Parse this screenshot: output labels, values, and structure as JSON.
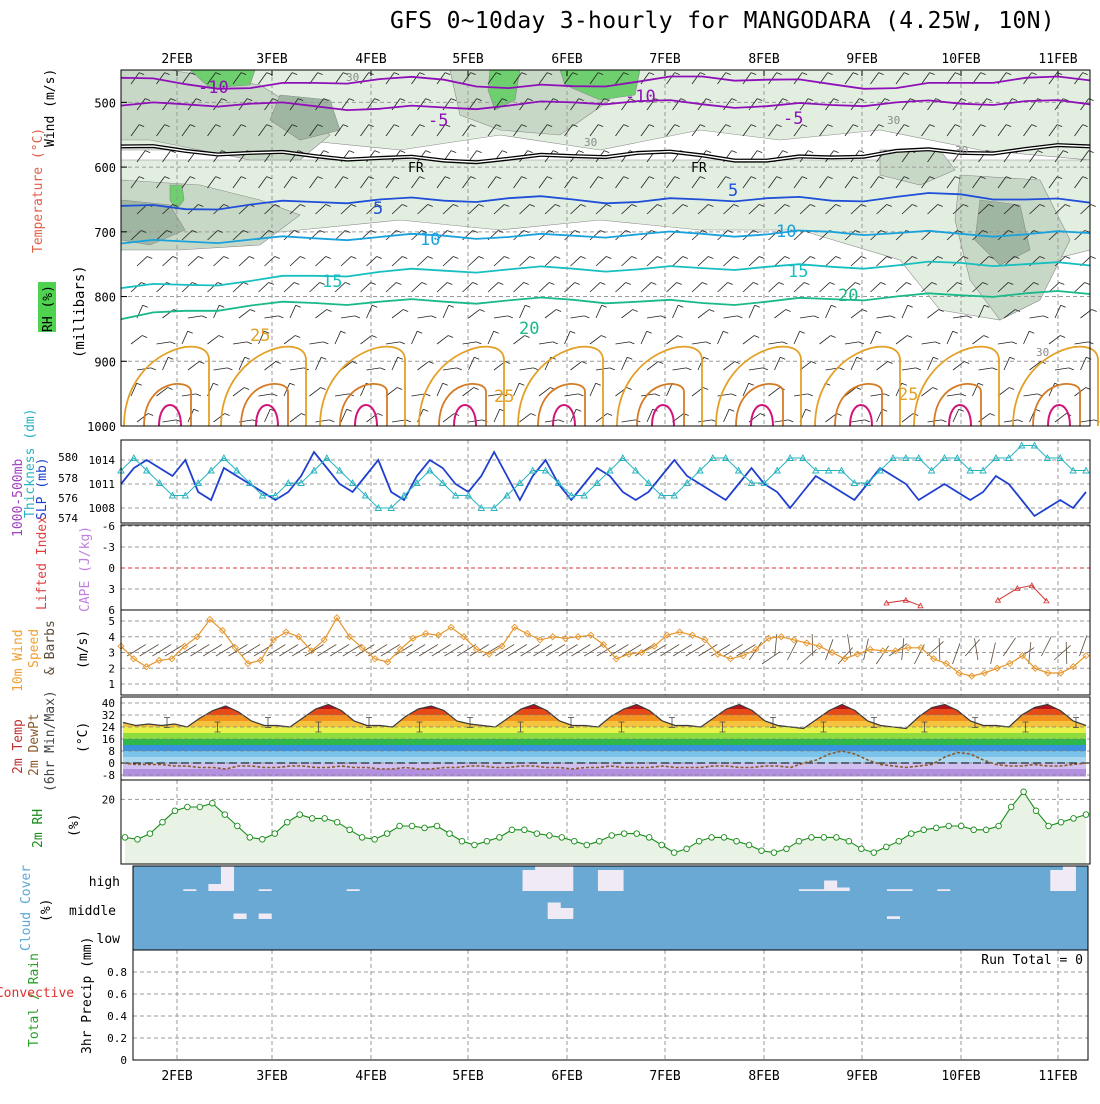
{
  "title": "GFS 0~10day 3-hourly for MANGODARA (4.25W, 10N)",
  "dates": [
    "2FEB",
    "3FEB",
    "4FEB",
    "5FEB",
    "6FEB",
    "7FEB",
    "8FEB",
    "9FEB",
    "10FEB",
    "11FEB"
  ],
  "colors": {
    "rh_light": "#e2efe0",
    "rh_mid": "#c8d8c7",
    "rh_dark": "#9fb7a2",
    "rh_green": "#6dcf6d",
    "temp_purple": "#8f10b8",
    "temp_black": "#000000",
    "temp_blue": "#1f4fd8",
    "temp_sky": "#19a2dc",
    "temp_teal": "#18bfc0",
    "temp_green": "#19b98a",
    "temp_orange": "#e3a025",
    "temp_dark_orange": "#d57b24",
    "temp_magenta": "#d2147a",
    "slp": "#1f3fcf",
    "thickness": "#27b3c0",
    "wind10": "#e6952a",
    "rh2m": "#1a8c1a",
    "cloud": "#6aa9d3",
    "cape_zero": "#e33333"
  },
  "chart_data": [
    {
      "type": "heatmap",
      "panel": "vertical profile",
      "ylabels": [
        "Wind (m/s)",
        "Temperature (°C)",
        "RH (%)",
        "(millibars)"
      ],
      "yticks": [
        "500",
        "600",
        "700",
        "800",
        "900",
        "1000"
      ],
      "ylim": [
        1000,
        450
      ],
      "contour_labels": [
        {
          "text": "-10",
          "series": "-10 °C"
        },
        {
          "text": "-10",
          "series": "-10 °C"
        },
        {
          "text": "-5",
          "series": "-5 °C"
        },
        {
          "text": "-5",
          "series": "-5 °C"
        },
        {
          "text": "FR",
          "series": "0 °C"
        },
        {
          "text": "FR",
          "series": "0 °C"
        },
        {
          "text": "5",
          "series": "5 °C"
        },
        {
          "text": "5",
          "series": "5 °C"
        },
        {
          "text": "10",
          "series": "10 °C"
        },
        {
          "text": "10",
          "series": "10 °C"
        },
        {
          "text": "15",
          "series": "15 °C"
        },
        {
          "text": "15",
          "series": "15 °C"
        },
        {
          "text": "20",
          "series": "20 °C"
        },
        {
          "text": "20",
          "series": "20 °C"
        },
        {
          "text": "25",
          "series": "25 °C"
        },
        {
          "text": "25",
          "series": "25 °C"
        },
        {
          "text": "25",
          "series": "25 °C"
        },
        {
          "text": "30",
          "series": "rh"
        },
        {
          "text": "30",
          "series": "rh"
        },
        {
          "text": "30",
          "series": "rh"
        },
        {
          "text": "30",
          "series": "rh"
        },
        {
          "text": "30",
          "series": "rh"
        }
      ],
      "isotherms": [
        {
          "name": "-10 °C",
          "values": [
            462,
            472,
            478,
            470,
            464,
            465,
            478,
            475,
            468,
            460,
            465,
            472,
            478,
            470,
            462,
            466
          ]
        },
        {
          "name": "-5 °C",
          "values": [
            505,
            503,
            502,
            506,
            510,
            508,
            505,
            500,
            498,
            503,
            506,
            504,
            500,
            502,
            498,
            503
          ]
        },
        {
          "name": "0 °C",
          "values": [
            568,
            575,
            578,
            583,
            586,
            590,
            587,
            583,
            578,
            582,
            590,
            585,
            575,
            578,
            572,
            568
          ]
        },
        {
          "name": "5 °C",
          "values": [
            660,
            665,
            658,
            654,
            650,
            652,
            648,
            650,
            654,
            650,
            648,
            652,
            646,
            642,
            650,
            655
          ]
        },
        {
          "name": "10 °C",
          "values": [
            718,
            715,
            712,
            710,
            708,
            706,
            708,
            706,
            704,
            703,
            704,
            700,
            702,
            703,
            704,
            702
          ]
        },
        {
          "name": "15 °C",
          "values": [
            787,
            782,
            776,
            768,
            762,
            760,
            758,
            757,
            758,
            756,
            754,
            754,
            752,
            748,
            750,
            752
          ]
        },
        {
          "name": "20 °C",
          "values": [
            835,
            822,
            814,
            810,
            808,
            808,
            806,
            805,
            808,
            810,
            808,
            804,
            800,
            798,
            795,
            796
          ]
        }
      ]
    },
    {
      "type": "line",
      "panel": "SLP and thickness",
      "ylabels": [
        "1000-500mb",
        "Thickness (dm)",
        "SLP (mb)"
      ],
      "slp_ticks": [
        "1014",
        "1011",
        "1008"
      ],
      "thickness_ticks": [
        "580",
        "578",
        "576",
        "574"
      ],
      "series": [
        {
          "name": "SLP",
          "values": [
            1011,
            1013,
            1014,
            1013,
            1012,
            1014,
            1010,
            1009,
            1013,
            1012,
            1011,
            1010,
            1009,
            1010,
            1012,
            1015,
            1013,
            1011,
            1010,
            1012,
            1014,
            1010,
            1009,
            1012,
            1014,
            1013,
            1011,
            1010,
            1012,
            1015,
            1012,
            1009,
            1012,
            1014,
            1011,
            1009,
            1011,
            1013,
            1012,
            1010,
            1009,
            1010,
            1012,
            1014,
            1012,
            1011,
            1010,
            1009,
            1011,
            1013,
            1011,
            1010,
            1008,
            1010,
            1012,
            1011,
            1010,
            1009,
            1011,
            1013,
            1012,
            1011,
            1009,
            1010,
            1011,
            1010,
            1009,
            1010,
            1012,
            1011,
            1009,
            1007,
            1008,
            1009,
            1008,
            1010
          ]
        },
        {
          "name": "Thickness",
          "values": [
            579,
            580,
            579,
            578,
            577,
            577,
            578,
            579,
            580,
            579,
            578,
            577,
            577,
            578,
            578,
            579,
            580,
            579,
            578,
            577,
            576,
            576,
            577,
            578,
            579,
            578,
            577,
            577,
            576,
            576,
            577,
            578,
            579,
            579,
            578,
            577,
            577,
            578,
            579,
            580,
            579,
            578,
            577,
            577,
            578,
            579,
            580,
            580,
            579,
            578,
            578,
            579,
            580,
            580,
            579,
            579,
            579,
            578,
            578,
            579,
            580,
            580,
            580,
            579,
            580,
            580,
            579,
            579,
            580,
            580,
            581,
            581,
            580,
            580,
            579,
            579
          ]
        }
      ]
    },
    {
      "type": "line",
      "panel": "Lifted Index / CAPE",
      "ylabels": [
        "Lifted Index",
        "CAPE (J/kg)"
      ],
      "yticks": [
        "-6",
        "-3",
        "0",
        "3",
        "6"
      ],
      "ylim": [
        6,
        -6
      ],
      "series": [
        {
          "name": "Lifted Index",
          "segments": [
            {
              "x": [
                0.79,
                0.81,
                0.825
              ],
              "values": [
                5,
                4.6,
                5.4
              ]
            },
            {
              "x": [
                0.905,
                0.925,
                0.94,
                0.955
              ],
              "values": [
                4.6,
                2.9,
                2.5,
                4.7
              ]
            }
          ]
        }
      ]
    },
    {
      "type": "line",
      "panel": "10m wind",
      "ylabels": [
        "10m Wind",
        "Speed",
        "& Barbs",
        "(m/s)"
      ],
      "yticks": [
        "1",
        "2",
        "3",
        "4",
        "5"
      ],
      "ylim": [
        0.5,
        5.5
      ],
      "series": [
        {
          "name": "Speed",
          "values": [
            3.4,
            2.6,
            2.1,
            2.5,
            2.6,
            3.4,
            4.0,
            5.1,
            4.4,
            3.3,
            2.3,
            2.5,
            3.8,
            4.3,
            4.0,
            3.1,
            3.8,
            5.2,
            4.0,
            3.3,
            2.6,
            2.4,
            3.2,
            3.9,
            4.2,
            4.1,
            4.6,
            4.0,
            3.2,
            2.9,
            3.4,
            4.6,
            4.2,
            3.8,
            4.0,
            3.9,
            4.0,
            4.1,
            3.5,
            2.6,
            2.9,
            3.0,
            3.4,
            4.1,
            4.3,
            4.1,
            3.8,
            2.9,
            2.6,
            2.8,
            3.2,
            3.9,
            4.0,
            3.8,
            3.6,
            3.4,
            3.0,
            2.6,
            2.9,
            3.2,
            3.1,
            3.1,
            3.3,
            3.3,
            2.6,
            2.3,
            1.7,
            1.5,
            1.7,
            2.0,
            2.3,
            2.8,
            2.0,
            1.7,
            1.7,
            2.1,
            2.8
          ]
        }
      ]
    },
    {
      "type": "area",
      "panel": "2m temperature",
      "ylabels": [
        "2m Temp",
        "2m DewPt",
        "(6hr Min/Max)",
        "(°C)"
      ],
      "yticks": [
        "40",
        "32",
        "24",
        "16",
        "8",
        "0",
        "-8"
      ],
      "ylim": [
        -10,
        42
      ],
      "series": [
        {
          "name": "2m Temp",
          "values": [
            27,
            25,
            26,
            25,
            26,
            24,
            30,
            35,
            38,
            34,
            28,
            25,
            25,
            24,
            30,
            36,
            39,
            35,
            28,
            25,
            25,
            24,
            31,
            36,
            38,
            35,
            28,
            26,
            25,
            24,
            30,
            36,
            39,
            35,
            28,
            25,
            25,
            24,
            31,
            36,
            39,
            35,
            28,
            25,
            25,
            24,
            30,
            36,
            39,
            35,
            28,
            25,
            24,
            23,
            29,
            35,
            39,
            35,
            28,
            25,
            24,
            23,
            31,
            37,
            39,
            35,
            28,
            25,
            25,
            24,
            32,
            37,
            39,
            35,
            28,
            25
          ]
        },
        {
          "name": "2m DewPt",
          "values": [
            0,
            -1,
            -1,
            -1,
            -2,
            -2,
            -3,
            -3,
            -4,
            -2,
            -2,
            -3,
            -3,
            -2,
            -2,
            -3,
            -3,
            -2,
            -3,
            -3,
            -4,
            -4,
            -3,
            -4,
            -4,
            -3,
            -3,
            -2,
            -2,
            -3,
            -3,
            -2,
            -2,
            -3,
            -3,
            -4,
            -3,
            -3,
            -2,
            -3,
            -3,
            -3,
            -2,
            -3,
            -3,
            -3,
            -2,
            -2,
            -3,
            -3,
            -2,
            -2,
            -3,
            0,
            2,
            6,
            8,
            6,
            2,
            -1,
            -2,
            -3,
            -2,
            -1,
            4,
            7,
            6,
            2,
            -1,
            -2,
            -2,
            -1,
            -2,
            -2,
            -1,
            0
          ]
        }
      ]
    },
    {
      "type": "area",
      "panel": "2m RH",
      "ylabels": [
        "2m RH",
        "(%)"
      ],
      "yticks": [
        "20"
      ],
      "ylim": [
        3,
        23
      ],
      "series": [
        {
          "name": "2m RH",
          "values": [
            10,
            9.5,
            11,
            14,
            17,
            18,
            18,
            19,
            16,
            13,
            10,
            9.5,
            11,
            14,
            16,
            15,
            15,
            14,
            12,
            10,
            9.5,
            11,
            13,
            13,
            12.5,
            13,
            11,
            9,
            8,
            9,
            10,
            12,
            12,
            11,
            10.5,
            10,
            9,
            8,
            9,
            10.5,
            11,
            11,
            10,
            8,
            6,
            7,
            9,
            10,
            10,
            9,
            8,
            6.5,
            6,
            7,
            9,
            10,
            10,
            10,
            9,
            7,
            6,
            7.5,
            9,
            11,
            12,
            12.5,
            13,
            13,
            12,
            12,
            13,
            18,
            22,
            17,
            13,
            14,
            15,
            16
          ]
        }
      ]
    },
    {
      "type": "bar",
      "panel": "cloud cover",
      "ylabels": [
        "Cloud Cover",
        "(%)"
      ],
      "yticks": [
        "high",
        "middle",
        "low"
      ],
      "series": [
        {
          "name": "high",
          "values": [
            0,
            0,
            0,
            0,
            5,
            0,
            20,
            70,
            0,
            0,
            5,
            0,
            0,
            0,
            0,
            0,
            0,
            5,
            0,
            0,
            0,
            0,
            0,
            0,
            0,
            0,
            0,
            0,
            0,
            0,
            0,
            60,
            70,
            70,
            70,
            0,
            0,
            60,
            60,
            0,
            0,
            0,
            0,
            0,
            0,
            0,
            0,
            0,
            0,
            0,
            0,
            0,
            0,
            5,
            5,
            30,
            10,
            0,
            0,
            0,
            5,
            5,
            0,
            0,
            5,
            0,
            0,
            0,
            0,
            0,
            0,
            0,
            0,
            60,
            70,
            0
          ]
        },
        {
          "name": "middle",
          "values": [
            0,
            0,
            0,
            0,
            0,
            0,
            0,
            0,
            10,
            0,
            10,
            0,
            0,
            0,
            0,
            0,
            0,
            0,
            0,
            0,
            0,
            0,
            0,
            0,
            0,
            0,
            0,
            0,
            0,
            0,
            0,
            0,
            0,
            30,
            20,
            0,
            0,
            0,
            0,
            0,
            0,
            0,
            0,
            0,
            0,
            0,
            0,
            0,
            0,
            0,
            0,
            0,
            0,
            0,
            0,
            0,
            0,
            0,
            0,
            0,
            5,
            0,
            0,
            0,
            0,
            0,
            0,
            0,
            0,
            0,
            0,
            0,
            0,
            0,
            0,
            0
          ]
        }
      ]
    },
    {
      "type": "bar",
      "panel": "precipitation",
      "ylabels": [
        "Total / Rain",
        "Convective",
        "3hr Precip (mm)"
      ],
      "yticks": [
        "0",
        "0.2",
        "0.4",
        "0.6",
        "0.8"
      ],
      "ylim": [
        0,
        1
      ],
      "annotation": "Run Total = 0",
      "series": [
        {
          "name": "precip",
          "values": []
        }
      ]
    }
  ]
}
